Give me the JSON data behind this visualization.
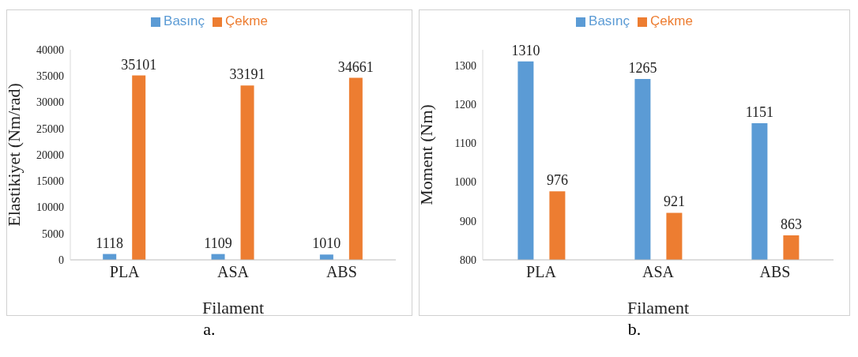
{
  "chart_data": [
    {
      "type": "bar",
      "xlabel": "Filament",
      "ylabel": "Elastikiyet  (Nm/rad)",
      "categories": [
        "PLA",
        "ASA",
        "ABS"
      ],
      "series": [
        {
          "name": "Basınç",
          "color": "#5b9bd5",
          "values": [
            1118,
            1109,
            1010
          ]
        },
        {
          "name": "Çekme",
          "color": "#ed7d31",
          "values": [
            35101,
            33191,
            34661
          ]
        }
      ],
      "ylim": [
        0,
        40000
      ],
      "yticks": [
        0,
        5000,
        10000,
        15000,
        20000,
        25000,
        30000,
        35000,
        40000
      ],
      "grid": false,
      "legend": "top",
      "data_labels": true,
      "annotations": [
        "a."
      ]
    },
    {
      "type": "bar",
      "xlabel": "Filament",
      "ylabel": "Moment  (Nm)",
      "categories": [
        "PLA",
        "ASA",
        "ABS"
      ],
      "series": [
        {
          "name": "Basınç",
          "color": "#5b9bd5",
          "values": [
            1310,
            1265,
            1151
          ]
        },
        {
          "name": "Çekme",
          "color": "#ed7d31",
          "values": [
            976,
            921,
            863
          ]
        }
      ],
      "ylim": [
        800,
        1340
      ],
      "yticks": [
        800,
        900,
        1000,
        1100,
        1200,
        1300
      ],
      "grid": false,
      "legend": "top",
      "data_labels": true,
      "annotations": [
        "b."
      ]
    }
  ]
}
